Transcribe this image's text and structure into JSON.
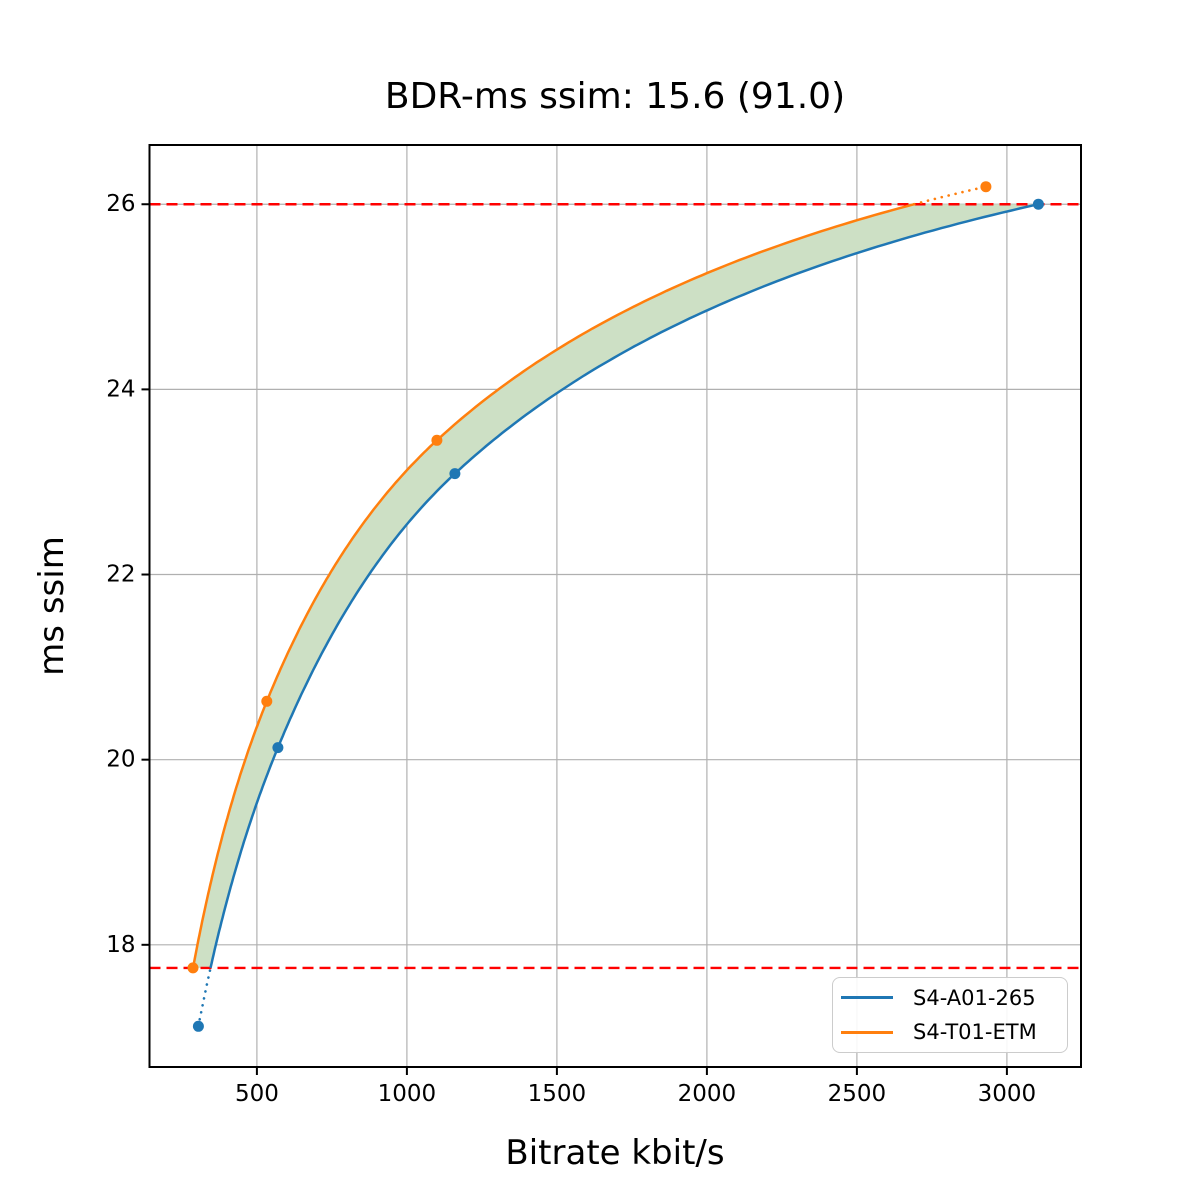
{
  "title": "BDR-ms ssim: 15.6 (91.0)",
  "chart_data": {
    "type": "line",
    "title": "BDR-ms ssim: 15.6 (91.0)",
    "xlabel": "Bitrate kbit/s",
    "ylabel": "ms ssim",
    "xlim": [
      142,
      3247
    ],
    "ylim": [
      16.68,
      26.64
    ],
    "xticks": [
      500,
      1000,
      1500,
      2000,
      2500,
      3000
    ],
    "yticks": [
      18,
      20,
      22,
      24,
      26
    ],
    "grid": true,
    "legend_position": "lower right",
    "interpolation": "pchip-log-rate",
    "series": [
      {
        "name": "S4-A01-265",
        "color": "#1f77b4",
        "points": [
          [
            305,
            17.12
          ],
          [
            570,
            20.13
          ],
          [
            1160,
            23.09
          ],
          [
            3105,
            26.0
          ]
        ]
      },
      {
        "name": "S4-T01-ETM",
        "color": "#ff7f0e",
        "points": [
          [
            287,
            17.75
          ],
          [
            533,
            20.63
          ],
          [
            1100,
            23.45
          ],
          [
            2930,
            26.19
          ]
        ]
      }
    ],
    "reference_lines": {
      "y_values": [
        17.75,
        26.0
      ],
      "color": "#ff0000",
      "style": "dashed"
    },
    "overlap_band": {
      "fill_color": "#cde0c5",
      "quality_range": [
        17.75,
        26.0
      ]
    }
  },
  "colors": {
    "grid": "#b0b0b0",
    "spine": "#000000",
    "background": "#ffffff",
    "legend_border": "#cccccc"
  }
}
